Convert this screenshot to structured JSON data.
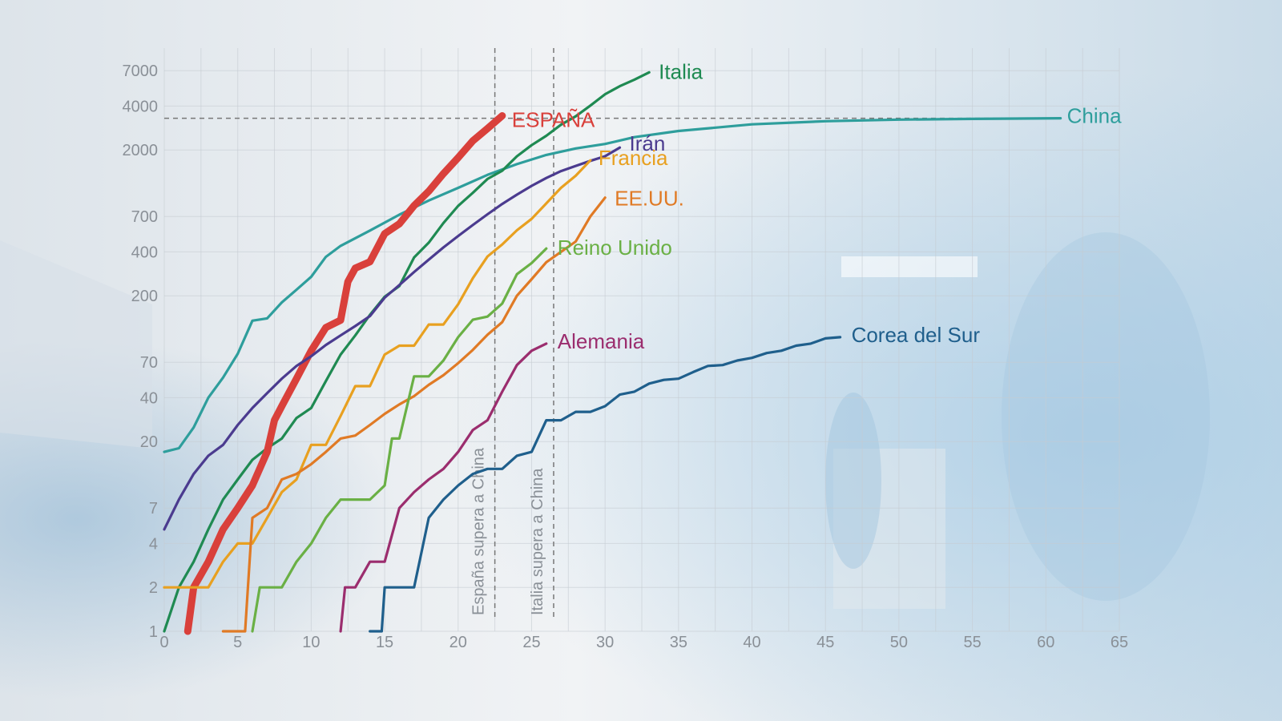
{
  "chart_data": {
    "type": "line",
    "y_scale": "log",
    "xlim": [
      0,
      65
    ],
    "ylim": [
      1,
      10000
    ],
    "grid": true,
    "x_ticks": [
      0,
      5,
      10,
      15,
      20,
      25,
      30,
      35,
      40,
      45,
      50,
      55,
      60,
      65
    ],
    "y_ticks": [
      1,
      2,
      4,
      7,
      20,
      40,
      70,
      200,
      400,
      700,
      2000,
      4000,
      7000
    ],
    "reference_lines": [
      {
        "type": "vertical",
        "x": 22.5,
        "label": "España supera a China"
      },
      {
        "type": "vertical",
        "x": 26.5,
        "label": "Italia supera a China"
      },
      {
        "type": "horizontal",
        "y": 3300
      }
    ],
    "series": [
      {
        "name": "China",
        "color": "#2e9e9c",
        "x": [
          0,
          1,
          2,
          3,
          4,
          5,
          6,
          7,
          8,
          9,
          10,
          11,
          12,
          14,
          16,
          18,
          20,
          22,
          24,
          26,
          28,
          30,
          32,
          35,
          40,
          45,
          50,
          55,
          61
        ],
        "y": [
          17,
          18,
          25,
          40,
          55,
          80,
          135,
          140,
          180,
          220,
          270,
          370,
          440,
          560,
          720,
          900,
          1100,
          1350,
          1600,
          1850,
          2050,
          2200,
          2450,
          2700,
          3000,
          3150,
          3230,
          3270,
          3300
        ]
      },
      {
        "name": "Italia",
        "color": "#1f8a52",
        "x": [
          0,
          1,
          2,
          3,
          4,
          5,
          6,
          7,
          8,
          9,
          10,
          11,
          12,
          13,
          14,
          15,
          16,
          17,
          18,
          19,
          20,
          21,
          22,
          23,
          24,
          25,
          26,
          27,
          28,
          29,
          30,
          31,
          32,
          33
        ],
        "y": [
          1,
          2,
          3,
          5,
          8,
          11,
          15,
          18,
          21,
          29,
          34,
          52,
          79,
          107,
          148,
          197,
          233,
          366,
          463,
          631,
          827,
          1016,
          1266,
          1441,
          1809,
          2158,
          2503,
          2978,
          3405,
          4032,
          4825,
          5476,
          6077,
          6820
        ]
      },
      {
        "name": "ESPAÑA",
        "color": "#d9403b",
        "x": [
          1.6,
          2,
          3,
          4,
          5,
          6,
          7,
          7.5,
          8,
          9,
          10,
          11,
          12,
          12.5,
          13,
          14,
          15,
          16,
          17,
          18,
          19,
          20,
          21,
          22,
          23
        ],
        "y": [
          1,
          2,
          3,
          5,
          7,
          10,
          17,
          28,
          35,
          54,
          84,
          121,
          136,
          250,
          309,
          342,
          533,
          623,
          830,
          1043,
          1375,
          1772,
          2311,
          2808,
          3434
        ]
      },
      {
        "name": "Irán",
        "color": "#4b3b8f",
        "x": [
          0,
          1,
          2,
          3,
          4,
          5,
          6,
          7,
          8,
          9,
          10,
          11,
          12,
          13,
          14,
          15,
          16,
          17,
          18,
          19,
          20,
          21,
          22,
          23,
          24,
          25,
          26,
          27,
          28,
          29,
          30,
          31
        ],
        "y": [
          5,
          8,
          12,
          16,
          19,
          26,
          34,
          43,
          54,
          66,
          77,
          92,
          107,
          124,
          145,
          194,
          237,
          291,
          354,
          429,
          514,
          611,
          724,
          853,
          988,
          1135,
          1284,
          1433,
          1556,
          1685,
          1812,
          2077
        ]
      },
      {
        "name": "Francia",
        "color": "#e8a020",
        "x": [
          0,
          3,
          4,
          5,
          6,
          7,
          8,
          9,
          10,
          11,
          12,
          13,
          14,
          15,
          16,
          17,
          18,
          19,
          20,
          21,
          22,
          23,
          24,
          25,
          26,
          27,
          28,
          29
        ],
        "y": [
          2,
          2,
          3,
          4,
          4,
          6,
          9,
          11,
          19,
          19,
          30,
          48,
          48,
          79,
          91,
          91,
          127,
          127,
          175,
          264,
          372,
          450,
          562,
          674,
          860,
          1100,
          1331,
          1696
        ]
      },
      {
        "name": "EE.UU.",
        "color": "#e07a25",
        "x": [
          4,
          5,
          5.5,
          6,
          7,
          8,
          9,
          10,
          11,
          12,
          13,
          14,
          15,
          16,
          17,
          18,
          19,
          20,
          21,
          22,
          23,
          24,
          25,
          26,
          27,
          28,
          29,
          30
        ],
        "y": [
          1,
          1,
          1,
          6,
          7,
          11,
          12,
          14,
          17,
          21,
          22,
          26,
          31,
          36,
          41,
          49,
          57,
          69,
          85,
          108,
          132,
          200,
          260,
          340,
          400,
          471,
          700,
          942
        ]
      },
      {
        "name": "Reino Unido",
        "color": "#6ab045",
        "x": [
          6,
          6.5,
          7,
          8,
          9,
          10,
          11,
          12,
          13,
          14,
          15,
          15.5,
          16,
          17,
          18,
          19,
          20,
          21,
          22,
          23,
          24,
          25,
          26
        ],
        "y": [
          1,
          2,
          2,
          2,
          3,
          4,
          6,
          8,
          8,
          8,
          10,
          21,
          21,
          56,
          56,
          72,
          104,
          137,
          144,
          177,
          281,
          335,
          422
        ]
      },
      {
        "name": "Alemania",
        "color": "#9b2d6e",
        "x": [
          12,
          12.3,
          13,
          14,
          14.5,
          15,
          16,
          17,
          18,
          19,
          20,
          21,
          22,
          23,
          24,
          25,
          26
        ],
        "y": [
          1,
          2,
          2,
          3,
          3,
          3,
          7,
          9,
          11,
          13,
          17,
          24,
          28,
          44,
          67,
          84,
          94
        ]
      },
      {
        "name": "Corea del Sur",
        "color": "#1f5f8c",
        "x": [
          14,
          14.8,
          15,
          16,
          17,
          18,
          19,
          20,
          21,
          22,
          23,
          24,
          25,
          26,
          27,
          28,
          29,
          30,
          31,
          32,
          33,
          34,
          35,
          36,
          37,
          38,
          39,
          40,
          41,
          42,
          43,
          44,
          45,
          46
        ],
        "y": [
          1,
          1,
          2,
          2,
          2,
          6,
          8,
          10,
          12,
          13,
          13,
          16,
          17,
          28,
          28,
          32,
          32,
          35,
          42,
          44,
          50,
          53,
          54,
          60,
          66,
          67,
          72,
          75,
          81,
          84,
          91,
          94,
          102,
          104
        ]
      }
    ]
  }
}
